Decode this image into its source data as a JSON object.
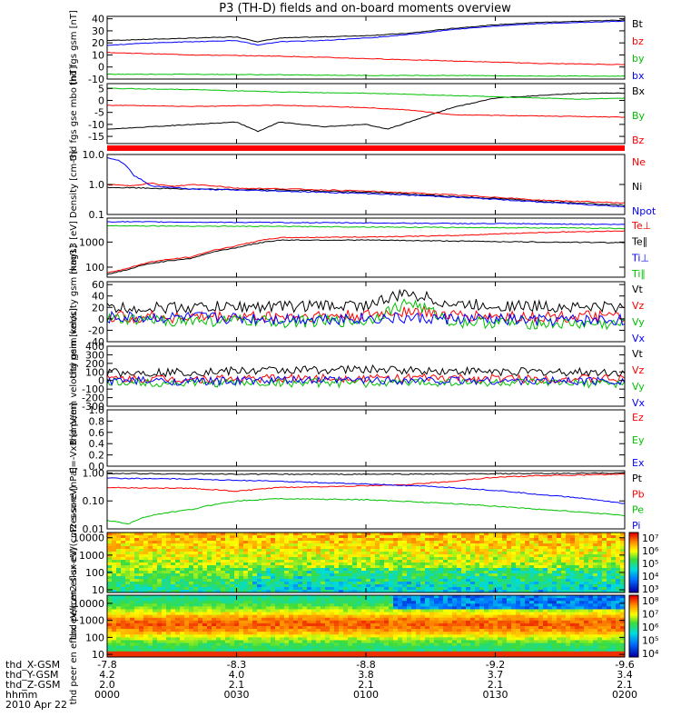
{
  "chart_data": {
    "type": "line",
    "title": "P3 (TH-D) fields and on-board moments overview",
    "x_axis": {
      "ticks": [
        0,
        30,
        60,
        90,
        120
      ],
      "rows": [
        {
          "label": "thd_X-GSM",
          "values": [
            "-7.8",
            "-8.3",
            "-8.8",
            "-9.2",
            "-9.6"
          ]
        },
        {
          "label": "thd_Y-GSM",
          "values": [
            "4.2",
            "4.0",
            "3.8",
            "3.7",
            "3.4"
          ]
        },
        {
          "label": "thd_Z-GSM",
          "values": [
            "2.0",
            "2.1",
            "2.1",
            "2.1",
            "2.1"
          ]
        },
        {
          "label": "hhmm",
          "values": [
            "0000",
            "0030",
            "0100",
            "0130",
            "0200"
          ]
        }
      ],
      "date": "2010 Apr 22"
    },
    "panels": [
      {
        "ylabel": "thd fgs gsm [nT]",
        "scale": "linear",
        "ylim": [
          -10,
          42
        ],
        "yticks": [
          [
            "40",
            40
          ],
          [
            "30",
            30
          ],
          [
            "20",
            20
          ],
          [
            "10",
            10
          ],
          [
            "0",
            0
          ],
          [
            "-10",
            -10
          ]
        ],
        "series": [
          {
            "name": "Bt",
            "color": "#000000",
            "x": [
              0,
              10,
              20,
              30,
              35,
              40,
              50,
              60,
              70,
              80,
              90,
              100,
              110,
              120
            ],
            "y": [
              22,
              23,
              24,
              25,
              21,
              24,
              25,
              26,
              28,
              32,
              35,
              37,
              38,
              39
            ]
          },
          {
            "name": "bz",
            "color": "#ff0000",
            "x": [
              0,
              20,
              40,
              60,
              80,
              100,
              120
            ],
            "y": [
              12,
              10,
              9,
              7,
              5,
              3,
              2
            ]
          },
          {
            "name": "by",
            "color": "#00c000",
            "x": [
              0,
              20,
              40,
              60,
              80,
              100,
              120
            ],
            "y": [
              -6,
              -6,
              -6.5,
              -7,
              -7,
              -7.5,
              -7.5
            ]
          },
          {
            "name": "bx",
            "color": "#0000ff",
            "x": [
              0,
              10,
              20,
              30,
              35,
              40,
              50,
              60,
              70,
              80,
              90,
              100,
              110,
              120
            ],
            "y": [
              18,
              20,
              21,
              22,
              18,
              21,
              22,
              24,
              27,
              31,
              34,
              36,
              37,
              38
            ]
          }
        ]
      },
      {
        "ylabel": "thd fgs gse mbo [nT]",
        "scale": "linear",
        "ylim": [
          -18,
          7
        ],
        "yticks": [
          [
            "5",
            5
          ],
          [
            "0",
            0
          ],
          [
            "-5",
            -5
          ],
          [
            "-10",
            -10
          ],
          [
            "-15",
            -15
          ]
        ],
        "series": [
          {
            "name": "Bx",
            "color": "#000000",
            "x": [
              0,
              10,
              20,
              30,
              35,
              40,
              50,
              60,
              65,
              70,
              80,
              90,
              100,
              110,
              120
            ],
            "y": [
              -12,
              -11,
              -10,
              -9,
              -13,
              -9,
              -11,
              -10,
              -12,
              -9,
              -3,
              1,
              2,
              3,
              3
            ]
          },
          {
            "name": "By",
            "color": "#00c000",
            "x": [
              0,
              20,
              40,
              60,
              80,
              100,
              110,
              120
            ],
            "y": [
              5,
              4.5,
              3.5,
              3,
              2,
              1,
              0.5,
              1
            ]
          },
          {
            "name": "Bz",
            "color": "#ff0000",
            "x": [
              0,
              20,
              40,
              60,
              70,
              80,
              100,
              120
            ],
            "y": [
              -2,
              -2.5,
              -2,
              -3,
              -4,
              -6,
              -6.5,
              -7
            ]
          }
        ]
      },
      {
        "ylabel": "Density [cm-3]",
        "scale": "log",
        "ylim": [
          0.1,
          10
        ],
        "yticks": [
          [
            "10.0",
            10
          ],
          [
            "1.0",
            1
          ],
          [
            "0.1",
            0.1
          ]
        ],
        "series": [
          {
            "name": "Ne",
            "color": "#ff0000",
            "x": [
              0,
              5,
              10,
              15,
              20,
              25,
              30,
              40,
              60,
              80,
              100,
              120
            ],
            "y": [
              1,
              0.9,
              1.1,
              0.85,
              1.0,
              0.9,
              0.75,
              0.72,
              0.6,
              0.45,
              0.3,
              0.24
            ]
          },
          {
            "name": "Ni",
            "color": "#000000",
            "x": [
              0,
              20,
              40,
              60,
              80,
              100,
              120
            ],
            "y": [
              0.8,
              0.7,
              0.65,
              0.55,
              0.4,
              0.28,
              0.2
            ]
          },
          {
            "name": "Npot",
            "color": "#0000ff",
            "x": [
              0,
              3,
              6,
              10,
              15,
              20,
              30,
              40,
              60,
              80,
              100,
              120
            ],
            "y": [
              8,
              6,
              2,
              0.9,
              0.8,
              0.7,
              0.65,
              0.6,
              0.5,
              0.38,
              0.26,
              0.18
            ]
          }
        ]
      },
      {
        "ylabel": "mag13 [eV]",
        "scale": "log",
        "ylim": [
          40,
          9000
        ],
        "yticks": [
          [
            "1000",
            1000
          ],
          [
            "100",
            100
          ]
        ],
        "series": [
          {
            "name": "Te⊥",
            "color": "#ff0000",
            "x": [
              0,
              5,
              10,
              20,
              30,
              40,
              60,
              80,
              100,
              120
            ],
            "y": [
              60,
              90,
              160,
              260,
              700,
              1500,
              1600,
              1800,
              2400,
              2800
            ]
          },
          {
            "name": "Te∥",
            "color": "#000000",
            "x": [
              0,
              5,
              10,
              20,
              30,
              40,
              60,
              80,
              100,
              120
            ],
            "y": [
              50,
              80,
              140,
              230,
              600,
              1200,
              1200,
              1100,
              1000,
              950
            ]
          },
          {
            "name": "Ti⊥",
            "color": "#0000ff",
            "x": [
              0,
              20,
              40,
              60,
              80,
              100,
              120
            ],
            "y": [
              6500,
              6200,
              6000,
              5800,
              5500,
              5300,
              5000
            ]
          },
          {
            "name": "Ti∥",
            "color": "#00c000",
            "x": [
              0,
              20,
              40,
              60,
              80,
              100,
              120
            ],
            "y": [
              4500,
              4300,
              4200,
              4000,
              3800,
              3700,
              3500
            ]
          }
        ]
      },
      {
        "ylabel": "thd peim velocity gsm [km/s]",
        "scale": "linear",
        "ylim": [
          -40,
          65
        ],
        "yticks": [
          [
            "60",
            60
          ],
          [
            "40",
            40
          ],
          [
            "20",
            20
          ],
          [
            "0",
            0
          ],
          [
            "-20",
            -20
          ],
          [
            "-40",
            -40
          ]
        ],
        "series": [
          {
            "name": "Vt",
            "color": "#000000",
            "x": [
              0,
              20,
              40,
              60,
              70,
              80,
              100,
              120
            ],
            "y": [
              18,
              20,
              22,
              24,
              45,
              25,
              22,
              20
            ]
          },
          {
            "name": "Vz",
            "color": "#ff0000",
            "x": [
              0,
              20,
              40,
              60,
              70,
              80,
              100,
              120
            ],
            "y": [
              3,
              3,
              4,
              5,
              15,
              5,
              4,
              3
            ]
          },
          {
            "name": "Vy",
            "color": "#00c000",
            "x": [
              0,
              20,
              40,
              60,
              70,
              80,
              100,
              120
            ],
            "y": [
              -2,
              -3,
              -5,
              -4,
              30,
              -5,
              -8,
              -10
            ]
          },
          {
            "name": "Vx",
            "color": "#0000ff",
            "x": [
              0,
              20,
              40,
              60,
              80,
              100,
              120
            ],
            "y": [
              2,
              2,
              0,
              1,
              0,
              -3,
              -2
            ]
          }
        ]
      },
      {
        "ylabel": "thd peem velocity gsm [km/s]",
        "scale": "linear",
        "ylim": [
          -300,
          400
        ],
        "yticks": [
          [
            "400",
            400
          ],
          [
            "300",
            300
          ],
          [
            "200",
            200
          ],
          [
            "100",
            100
          ],
          [
            "0",
            0
          ],
          [
            "-100",
            -100
          ],
          [
            "-200",
            -200
          ],
          [
            "-300",
            -300
          ]
        ],
        "series": [
          {
            "name": "Vt",
            "color": "#000000",
            "x": [
              0,
              20,
              40,
              60,
              80,
              100,
              120
            ],
            "y": [
              90,
              100,
              120,
              130,
              110,
              100,
              95
            ]
          },
          {
            "name": "Vz",
            "color": "#ff0000",
            "x": [
              0,
              20,
              40,
              60,
              80,
              100,
              120
            ],
            "y": [
              20,
              20,
              25,
              30,
              25,
              20,
              20
            ]
          },
          {
            "name": "Vy",
            "color": "#00c000",
            "x": [
              0,
              20,
              40,
              60,
              80,
              100,
              120
            ],
            "y": [
              -20,
              -30,
              -25,
              -30,
              -20,
              -30,
              -40
            ]
          },
          {
            "name": "Vx",
            "color": "#0000ff",
            "x": [
              0,
              20,
              40,
              60,
              80,
              100,
              120
            ],
            "y": [
              0,
              -10,
              0,
              5,
              0,
              -5,
              0
            ]
          }
        ]
      },
      {
        "ylabel": "E=-VxB [mV/m]",
        "scale": "linear",
        "ylim": [
          0,
          1
        ],
        "yticks": [
          [
            "1.0",
            1
          ],
          [
            "0.8",
            0.8
          ],
          [
            "0.6",
            0.6
          ],
          [
            "0.4",
            0.4
          ],
          [
            "0.2",
            0.2
          ],
          [
            "0.0",
            0
          ]
        ],
        "series": [
          {
            "name": "Ez",
            "color": "#ff0000",
            "x": [],
            "y": []
          },
          {
            "name": "Ey",
            "color": "#00c000",
            "x": [],
            "y": []
          },
          {
            "name": "Ex",
            "color": "#0000ff",
            "x": [],
            "y": []
          }
        ]
      },
      {
        "ylabel": "Pressure [nPa]",
        "scale": "log",
        "ylim": [
          0.01,
          1.2
        ],
        "yticks": [
          [
            "1.00",
            1
          ],
          [
            "0.10",
            0.1
          ],
          [
            "0.01",
            0.01
          ]
        ],
        "series": [
          {
            "name": "Pt",
            "color": "#000000",
            "x": [
              0,
              20,
              40,
              60,
              80,
              100,
              120
            ],
            "y": [
              0.95,
              0.92,
              0.9,
              0.9,
              0.92,
              0.95,
              1.0
            ]
          },
          {
            "name": "Pb",
            "color": "#ff0000",
            "x": [
              0,
              20,
              30,
              40,
              60,
              70,
              80,
              90,
              100,
              120
            ],
            "y": [
              0.3,
              0.28,
              0.22,
              0.3,
              0.35,
              0.38,
              0.5,
              0.7,
              0.8,
              0.9
            ]
          },
          {
            "name": "Pe",
            "color": "#00c000",
            "x": [
              0,
              5,
              10,
              20,
              30,
              40,
              60,
              80,
              100,
              120
            ],
            "y": [
              0.02,
              0.015,
              0.03,
              0.05,
              0.1,
              0.12,
              0.11,
              0.08,
              0.05,
              0.03
            ]
          },
          {
            "name": "Pi",
            "color": "#0000ff",
            "x": [
              0,
              20,
              40,
              60,
              80,
              100,
              120
            ],
            "y": [
              0.65,
              0.6,
              0.5,
              0.4,
              0.3,
              0.17,
              0.08
            ]
          }
        ]
      },
      {
        "ylabel": "thd peir en eflux eV/(cm2-s-sr-eV)",
        "type": "heatmap",
        "scale": "log",
        "ylim": [
          7,
          20000
        ],
        "yticks": [
          [
            "10000",
            10000
          ],
          [
            "1000",
            1000
          ],
          [
            "100",
            100
          ],
          [
            "10",
            10
          ]
        ],
        "colorbar": {
          "labels": [
            "10⁷",
            "10⁶",
            "10⁵",
            "10⁴",
            "10³"
          ]
        }
      },
      {
        "ylabel": "thd peer en eflux eV/(cm2-s-sr-eV)",
        "type": "heatmap",
        "scale": "log",
        "ylim": [
          7,
          30000
        ],
        "yticks": [
          [
            "10000",
            10000
          ],
          [
            "1000",
            1000
          ],
          [
            "100",
            100
          ],
          [
            "10",
            10
          ]
        ],
        "colorbar": {
          "labels": [
            "10⁸",
            "10⁷",
            "10⁶",
            "10⁵",
            "10⁴"
          ]
        }
      }
    ]
  }
}
